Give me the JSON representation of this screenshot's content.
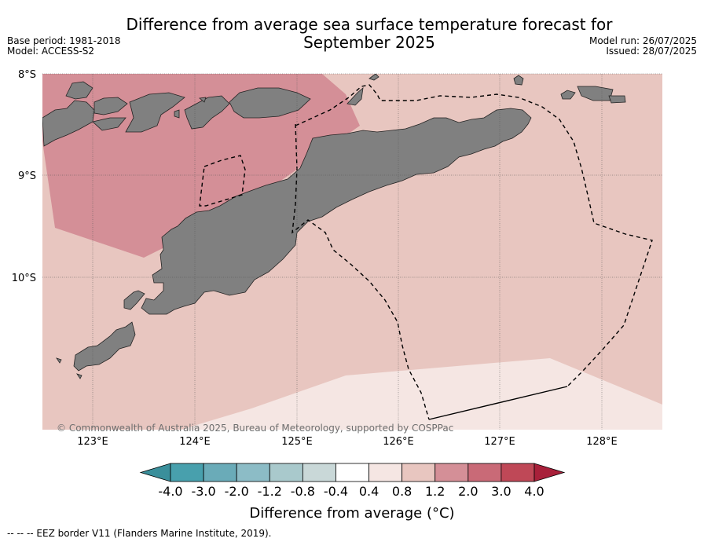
{
  "title_line1": "Difference from average sea surface temperature forecast for",
  "title_line2": "September 2025",
  "base_period": "Base period: 1981-2018",
  "model": "Model: ACCESS-S2",
  "model_run": "Model run: 26/07/2025",
  "issued": "Issued: 28/07/2025",
  "lat_labels": [
    "8°S",
    "9°S",
    "10°S"
  ],
  "lon_labels": [
    "123°E",
    "124°E",
    "125°E",
    "126°E",
    "127°E",
    "128°E"
  ],
  "copyright": "© Commonwealth of Australia 2025, Bureau of Meteorology, supported by COSPPac",
  "colorbar": {
    "label": "Difference from average (°C)",
    "ticks": [
      "-4.0",
      "-3.0",
      "-2.0",
      "-1.2",
      "-0.8",
      "-0.4",
      "0.4",
      "0.8",
      "1.2",
      "2.0",
      "3.0",
      "4.0"
    ],
    "colors": [
      "#3a8f9b",
      "#48a0ad",
      "#6aabb8",
      "#8cbcc6",
      "#a9c9cc",
      "#c9d8d8",
      "#ffffff",
      "#f5e6e3",
      "#e8c6c0",
      "#d48f97",
      "#c96a77",
      "#bf4857",
      "#a8203a"
    ]
  },
  "eez_note": "-- -- -- EEZ border V11 (Flanders Marine Institute, 2019).",
  "legend_colors": {
    "land": "#808080",
    "anomaly_0_4_to_0_8": "#f5e6e3",
    "anomaly_0_8_to_1_2": "#e8c6c0",
    "anomaly_1_2_to_2_0": "#d48f97"
  }
}
